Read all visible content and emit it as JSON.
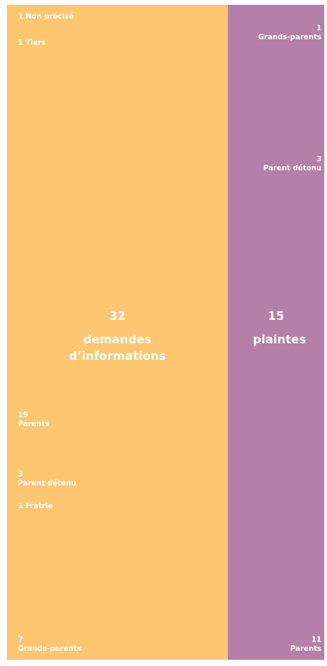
{
  "chart_data": {
    "type": "stacked-column",
    "series": [
      {
        "name": "demandes d’informations",
        "total": 32,
        "color": "#fec671",
        "align": "left",
        "categories": [
          "Non précisé",
          "Tiers",
          "Parents",
          "Parent détenu",
          "Fratrie",
          "Grands-parents"
        ],
        "values": [
          1,
          1,
          19,
          3,
          1,
          7
        ]
      },
      {
        "name": "plaintes",
        "total": 15,
        "color": "#b47fa8",
        "align": "right",
        "categories": [
          "Grands-parents",
          "Parent détenu",
          "Parents"
        ],
        "values": [
          1,
          3,
          11
        ]
      }
    ]
  }
}
